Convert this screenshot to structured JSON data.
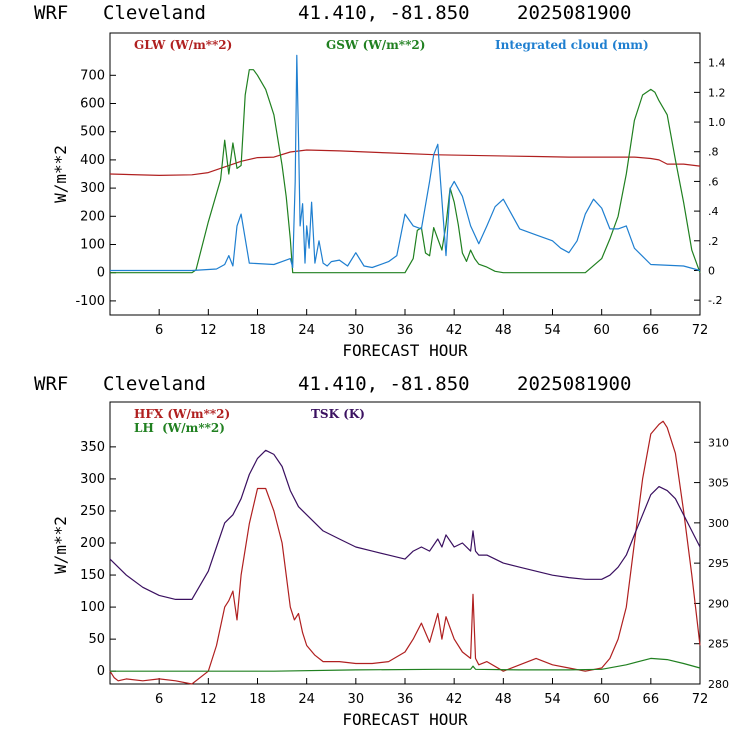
{
  "charts": [
    {
      "header": {
        "model": "WRF",
        "station": "Cleveland",
        "coords": "41.410, -81.850",
        "run": "2025081900"
      },
      "xlabel": "FORECAST HOUR",
      "ylabel": "W/m**2",
      "x_ticks": [
        6,
        12,
        18,
        24,
        30,
        36,
        42,
        48,
        54,
        60,
        66,
        72
      ],
      "y_ticks": [
        "-100",
        "0",
        "100",
        "200",
        "300",
        "400",
        "500",
        "600",
        "700"
      ],
      "right_ticks": [
        "-.2",
        "0",
        ".2",
        ".4",
        ".6",
        ".8",
        "1.0",
        "1.2",
        "1.4"
      ],
      "legend": [
        {
          "label": "GLW (W/m**2)",
          "color": "#b02020"
        },
        {
          "label": "GSW (W/m**2)",
          "color": "#208020"
        },
        {
          "label": "Integrated cloud (mm)",
          "color": "#1f7fd0"
        }
      ]
    },
    {
      "header": {
        "model": "WRF",
        "station": "Cleveland",
        "coords": "41.410, -81.850",
        "run": "2025081900"
      },
      "xlabel": "FORECAST HOUR",
      "ylabel": "W/m**2",
      "x_ticks": [
        6,
        12,
        18,
        24,
        30,
        36,
        42,
        48,
        54,
        60,
        66,
        72
      ],
      "y_ticks": [
        "0",
        "50",
        "100",
        "150",
        "200",
        "250",
        "300",
        "350"
      ],
      "right_ticks": [
        "280",
        "285",
        "290",
        "295",
        "300",
        "305",
        "310"
      ],
      "legend": [
        {
          "label": "HFX (W/m**2)",
          "color": "#b02020"
        },
        {
          "label": "LH  (W/m**2)",
          "color": "#208020"
        },
        {
          "label": "TSK (K)",
          "color": "#3a1060"
        }
      ]
    }
  ],
  "chart_data": [
    {
      "type": "line",
      "title": "WRF Cleveland 41.410, -81.850 2025081900",
      "xlabel": "FORECAST HOUR",
      "ylabel": "W/m**2",
      "xlim": [
        0,
        72
      ],
      "ylim": [
        -150,
        850
      ],
      "y2lim": [
        -0.3,
        1.6
      ],
      "grid": false,
      "legend_position": "top",
      "series": [
        {
          "name": "GLW (W/m**2)",
          "axis": "left",
          "color": "#b02020",
          "x": [
            0,
            6,
            10,
            12,
            14,
            16,
            18,
            20,
            22,
            24,
            28,
            34,
            40,
            46,
            52,
            56,
            60,
            62,
            64,
            66,
            67,
            68,
            70,
            72
          ],
          "y": [
            350,
            345,
            347,
            355,
            375,
            395,
            408,
            410,
            428,
            435,
            432,
            425,
            418,
            415,
            412,
            410,
            410,
            410,
            410,
            405,
            400,
            385,
            385,
            378
          ]
        },
        {
          "name": "GSW (W/m**2)",
          "axis": "left",
          "color": "#208020",
          "x": [
            0,
            10,
            10.5,
            12,
            13.5,
            14,
            14.5,
            15,
            15.5,
            16,
            16.5,
            17,
            17.5,
            18,
            19,
            20,
            21,
            21.5,
            22,
            22.3,
            36,
            37,
            37.5,
            38,
            38.5,
            39,
            39.5,
            40,
            40.5,
            41,
            41.5,
            42,
            42.5,
            43,
            43.5,
            44,
            44.5,
            45,
            46,
            47,
            48,
            58,
            60,
            61,
            62,
            63,
            64,
            65,
            66,
            66.5,
            67,
            68,
            69,
            70,
            71,
            72
          ],
          "y": [
            0,
            0,
            10,
            180,
            330,
            470,
            350,
            460,
            370,
            380,
            630,
            720,
            720,
            700,
            650,
            560,
            380,
            270,
            120,
            0,
            0,
            50,
            150,
            160,
            70,
            60,
            160,
            120,
            80,
            170,
            300,
            250,
            170,
            70,
            40,
            80,
            50,
            30,
            20,
            5,
            0,
            0,
            50,
            120,
            200,
            350,
            540,
            630,
            650,
            640,
            610,
            560,
            400,
            250,
            80,
            0
          ]
        },
        {
          "name": "Integrated cloud (mm)",
          "axis": "right",
          "color": "#1f7fd0",
          "x": [
            0,
            10,
            13,
            14,
            14.5,
            15,
            15.5,
            16,
            17,
            20,
            21,
            22,
            22.3,
            22.6,
            22.8,
            23,
            23.2,
            23.5,
            23.8,
            24,
            24.3,
            24.6,
            25,
            25.5,
            26,
            26.5,
            27,
            28,
            29,
            30,
            31,
            32,
            34,
            35,
            36,
            37,
            38,
            39,
            39.5,
            40,
            41,
            41.5,
            42,
            43,
            44,
            45,
            46,
            47,
            48,
            49,
            50,
            52,
            54,
            55,
            56,
            57,
            58,
            59,
            60,
            61,
            62,
            63,
            64,
            66,
            70,
            72
          ],
          "y": [
            0,
            0,
            0.01,
            0.04,
            0.1,
            0.03,
            0.3,
            0.38,
            0.05,
            0.04,
            0.06,
            0.08,
            0.02,
            0.6,
            1.45,
            0.9,
            0.3,
            0.45,
            0.05,
            0.3,
            0.15,
            0.46,
            0.05,
            0.2,
            0.05,
            0.03,
            0.06,
            0.07,
            0.03,
            0.12,
            0.03,
            0.02,
            0.06,
            0.1,
            0.38,
            0.3,
            0.28,
            0.6,
            0.78,
            0.85,
            0.1,
            0.55,
            0.6,
            0.5,
            0.3,
            0.18,
            0.3,
            0.43,
            0.48,
            0.38,
            0.28,
            0.24,
            0.2,
            0.15,
            0.12,
            0.2,
            0.38,
            0.48,
            0.42,
            0.28,
            0.28,
            0.3,
            0.15,
            0.04,
            0.03,
            0
          ]
        }
      ]
    },
    {
      "type": "line",
      "title": "WRF Cleveland 41.410, -81.850 2025081900",
      "xlabel": "FORECAST HOUR",
      "ylabel": "W/m**2",
      "xlim": [
        0,
        72
      ],
      "ylim": [
        -20,
        420
      ],
      "y2lim": [
        280,
        315
      ],
      "grid": false,
      "legend_position": "top-left",
      "series": [
        {
          "name": "HFX (W/m**2)",
          "axis": "left",
          "color": "#b02020",
          "x": [
            0,
            0.5,
            1,
            2,
            4,
            6,
            8,
            10,
            12,
            13,
            14,
            14.5,
            15,
            15.5,
            16,
            17,
            18,
            19,
            20,
            21,
            22,
            22.5,
            23,
            23.5,
            24,
            25,
            26,
            28,
            30,
            32,
            34,
            36,
            37,
            38,
            39,
            40,
            40.5,
            41,
            42,
            43,
            44,
            44.3,
            44.6,
            45,
            46,
            48,
            50,
            52,
            54,
            56,
            58,
            60,
            61,
            62,
            63,
            64,
            65,
            66,
            67,
            67.5,
            68,
            69,
            70,
            71,
            72
          ],
          "y": [
            0,
            -10,
            -15,
            -12,
            -15,
            -12,
            -15,
            -20,
            0,
            40,
            100,
            110,
            125,
            80,
            150,
            230,
            285,
            285,
            250,
            200,
            100,
            80,
            90,
            60,
            40,
            25,
            15,
            15,
            12,
            12,
            15,
            30,
            50,
            75,
            45,
            90,
            50,
            85,
            50,
            30,
            20,
            120,
            20,
            10,
            15,
            0,
            10,
            20,
            10,
            5,
            0,
            5,
            20,
            50,
            100,
            200,
            300,
            370,
            385,
            390,
            380,
            340,
            250,
            150,
            40
          ]
        },
        {
          "name": "LH  (W/m**2)",
          "axis": "left",
          "color": "#208020",
          "x": [
            0,
            10,
            20,
            30,
            40,
            44,
            44.3,
            44.6,
            50,
            56,
            60,
            63,
            66,
            68,
            70,
            72
          ],
          "y": [
            0,
            0,
            0,
            2,
            3,
            3,
            8,
            3,
            2,
            2,
            3,
            10,
            20,
            18,
            12,
            5
          ]
        },
        {
          "name": "TSK (K)",
          "axis": "right",
          "color": "#3a1060",
          "x": [
            0,
            2,
            4,
            6,
            8,
            10,
            12,
            13,
            14,
            14.5,
            15,
            16,
            17,
            18,
            19,
            20,
            21,
            22,
            23,
            24,
            26,
            28,
            30,
            32,
            34,
            36,
            37,
            38,
            39,
            40,
            40.5,
            41,
            42,
            43,
            44,
            44.3,
            44.6,
            45,
            46,
            48,
            50,
            52,
            54,
            56,
            58,
            60,
            61,
            62,
            63,
            64,
            65,
            66,
            67,
            68,
            69,
            70,
            71,
            72
          ],
          "y": [
            295.5,
            293.5,
            292,
            291,
            290.5,
            290.5,
            294,
            297,
            300,
            300.5,
            301,
            303,
            306,
            308,
            309,
            308.5,
            307,
            304,
            302,
            301,
            299,
            298,
            297,
            296.5,
            296,
            295.5,
            296.5,
            297,
            296.5,
            298,
            297,
            298.5,
            297,
            297.5,
            296.5,
            299,
            296.5,
            296,
            296,
            295,
            294.5,
            294,
            293.5,
            293.2,
            293,
            293,
            293.5,
            294.5,
            296,
            298.5,
            301,
            303.5,
            304.5,
            304,
            303,
            301,
            299,
            297
          ]
        }
      ]
    }
  ]
}
